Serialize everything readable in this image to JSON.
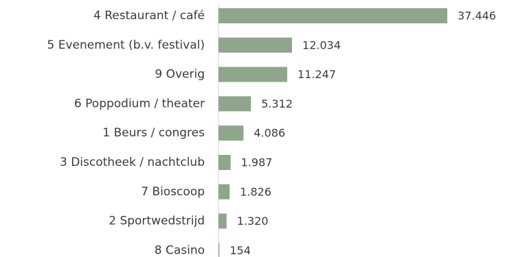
{
  "chart_data": {
    "type": "bar",
    "orientation": "horizontal",
    "categories": [
      "4 Restaurant / café",
      "5 Evenement (b.v. festival)",
      "9 Overig",
      "6 Poppodium / theater",
      "1 Beurs / congres",
      "3 Discotheek / nachtclub",
      "7 Bioscoop",
      "2 Sportwedstrijd",
      "8 Casino"
    ],
    "values": [
      37446,
      12034,
      11247,
      5312,
      4086,
      1987,
      1826,
      1320,
      154
    ],
    "value_labels": [
      "37.446",
      "12.034",
      "11.247",
      "5.312",
      "4.086",
      "1.987",
      "1.826",
      "1.320",
      "154"
    ],
    "xlim": [
      0,
      37446
    ],
    "grid": false,
    "legend": "none",
    "bar_color": "#8fa58c"
  }
}
